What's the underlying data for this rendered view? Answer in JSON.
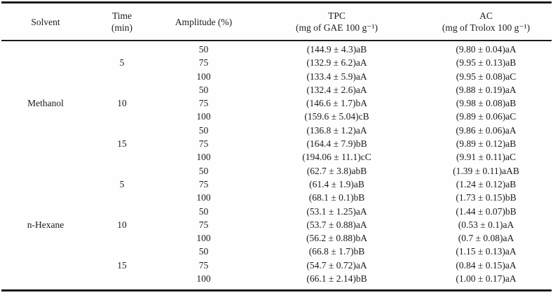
{
  "table": {
    "columns": [
      {
        "id": "solvent",
        "line1": "Solvent",
        "line2": ""
      },
      {
        "id": "time",
        "line1": "Time",
        "line2": "(min)"
      },
      {
        "id": "amplitude",
        "line1": "Amplitude (%)",
        "line2": ""
      },
      {
        "id": "tpc",
        "line1": "TPC",
        "line2": "(mg of GAE 100 g⁻¹)"
      },
      {
        "id": "ac",
        "line1": "AC",
        "line2": "(mg of Trolox 100 g⁻¹)"
      }
    ],
    "rows": [
      {
        "solvent": "",
        "time": "",
        "amplitude": "50",
        "tpc": "(144.9 ± 4.3)aB",
        "ac": "(9.80 ± 0.04)aA"
      },
      {
        "solvent": "",
        "time": "5",
        "amplitude": "75",
        "tpc": "(132.9 ± 6.2)aA",
        "ac": "(9.95 ± 0.13)aB"
      },
      {
        "solvent": "",
        "time": "",
        "amplitude": "100",
        "tpc": "(133.4 ± 5.9)aA",
        "ac": "(9.95 ± 0.08)aC"
      },
      {
        "solvent": "",
        "time": "",
        "amplitude": "50",
        "tpc": "(132.4 ± 2.6)aA",
        "ac": "(9.88 ± 0.19)aA"
      },
      {
        "solvent": "Methanol",
        "time": "10",
        "amplitude": "75",
        "tpc": "(146.6 ± 1.7)bA",
        "ac": "(9.98 ± 0.08)aB"
      },
      {
        "solvent": "",
        "time": "",
        "amplitude": "100",
        "tpc": "(159.6 ± 5.04)cB",
        "ac": "(9.89 ± 0.06)aC"
      },
      {
        "solvent": "",
        "time": "",
        "amplitude": "50",
        "tpc": "(136.8 ± 1.2)aA",
        "ac": "(9.86 ± 0.06)aA"
      },
      {
        "solvent": "",
        "time": "15",
        "amplitude": "75",
        "tpc": "(164.4 ± 7.9)bB",
        "ac": "(9.89 ± 0.12)aB"
      },
      {
        "solvent": "",
        "time": "",
        "amplitude": "100",
        "tpc": "(194.06 ± 11.1)cC",
        "ac": "(9.91 ± 0.11)aC"
      },
      {
        "solvent": "",
        "time": "",
        "amplitude": "50",
        "tpc": "(62.7 ± 3.8)abB",
        "ac": "(1.39 ± 0.11)aAB"
      },
      {
        "solvent": "",
        "time": "5",
        "amplitude": "75",
        "tpc": "(61.4 ± 1.9)aB",
        "ac": "(1.24 ± 0.12)aB"
      },
      {
        "solvent": "",
        "time": "",
        "amplitude": "100",
        "tpc": "(68.1 ± 0.1)bB",
        "ac": "(1.73 ± 0.15)bB"
      },
      {
        "solvent": "",
        "time": "",
        "amplitude": "50",
        "tpc": "(53.1 ± 1.25)aA",
        "ac": "(1.44 ± 0.07)bB"
      },
      {
        "solvent": "n-Hexane",
        "time": "10",
        "amplitude": "75",
        "tpc": "(53.7 ± 0.88)aA",
        "ac": "(0.53 ± 0.1)aA"
      },
      {
        "solvent": "",
        "time": "",
        "amplitude": "100",
        "tpc": "(56.2 ± 0.88)bA",
        "ac": "(0.7  ± 0.08)aA"
      },
      {
        "solvent": "",
        "time": "",
        "amplitude": "50",
        "tpc": "(66.8 ± 1.7)bB",
        "ac": "(1.15 ± 0.13)aA"
      },
      {
        "solvent": "",
        "time": "15",
        "amplitude": "75",
        "tpc": "(54.7 ± 0.72)aA",
        "ac": "(0.84 ± 0.15)aA"
      },
      {
        "solvent": "",
        "time": "",
        "amplitude": "100",
        "tpc": "(66.1 ± 2.14)bB",
        "ac": "(1.00 ± 0.17)aA"
      }
    ]
  }
}
